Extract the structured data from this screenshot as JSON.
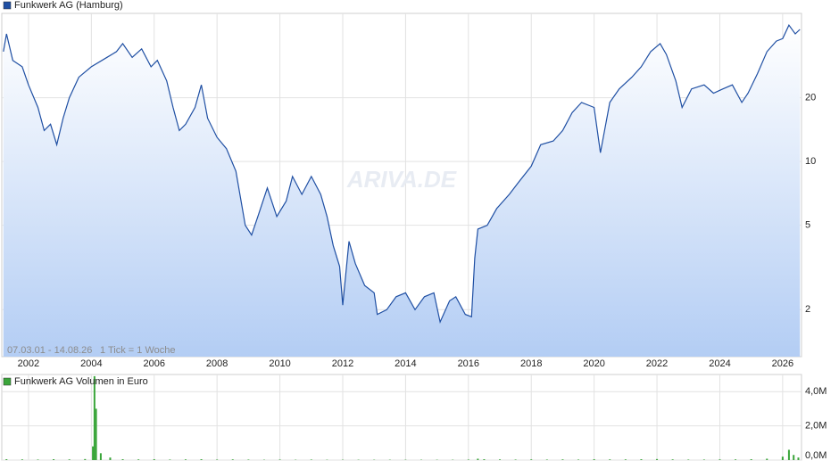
{
  "chart_data": [
    {
      "type": "line",
      "annotations": [
        "07.03.01 - 14.08.26",
        "1 Tick = 1 Woche"
      ],
      "watermark": "ARIVA.DE",
      "log_scale": true,
      "grid": true,
      "xtick_labels": true,
      "fill_area": true,
      "xlim": [
        2001.15,
        2026.6
      ],
      "ylim": [
        1.2,
        50
      ],
      "xticks": [
        2002,
        2004,
        2006,
        2008,
        2010,
        2012,
        2014,
        2016,
        2018,
        2020,
        2022,
        2024,
        2026
      ],
      "yticks": [
        2,
        5,
        10,
        20
      ],
      "x": [
        2001.2,
        2001.3,
        2001.5,
        2001.8,
        2002.0,
        2002.3,
        2002.5,
        2002.7,
        2002.9,
        2003.1,
        2003.3,
        2003.6,
        2004.0,
        2004.5,
        2004.8,
        2005.0,
        2005.3,
        2005.6,
        2005.9,
        2006.1,
        2006.4,
        2006.6,
        2006.8,
        2007.0,
        2007.3,
        2007.5,
        2007.7,
        2008.0,
        2008.3,
        2008.6,
        2008.9,
        2009.1,
        2009.3,
        2009.6,
        2009.9,
        2010.2,
        2010.4,
        2010.7,
        2011.0,
        2011.3,
        2011.5,
        2011.7,
        2011.9,
        2012.0,
        2012.2,
        2012.4,
        2012.7,
        2013.0,
        2013.1,
        2013.4,
        2013.7,
        2014.0,
        2014.3,
        2014.6,
        2014.9,
        2015.1,
        2015.4,
        2015.6,
        2015.9,
        2016.1,
        2016.2,
        2016.3,
        2016.6,
        2016.9,
        2017.3,
        2017.6,
        2018.0,
        2018.3,
        2018.7,
        2019.0,
        2019.3,
        2019.6,
        2020.0,
        2020.2,
        2020.5,
        2020.8,
        2021.2,
        2021.5,
        2021.8,
        2022.1,
        2022.3,
        2022.6,
        2022.8,
        2023.1,
        2023.5,
        2023.8,
        2024.1,
        2024.4,
        2024.7,
        2024.9,
        2025.2,
        2025.5,
        2025.8,
        2026.0,
        2026.2,
        2026.4,
        2026.55
      ],
      "series": [
        {
          "name": "Funkwerk AG (Hamburg)",
          "color": "#1f4fa3",
          "values": [
            33,
            40,
            30,
            28,
            23,
            18,
            14,
            15,
            12,
            16,
            20,
            25,
            28,
            31,
            33,
            36,
            31,
            34,
            28,
            30,
            24,
            18,
            14,
            15,
            18,
            23,
            16,
            13,
            11.5,
            9,
            5,
            4.5,
            5.5,
            7.5,
            5.5,
            6.5,
            8.5,
            7,
            8.5,
            7,
            5.5,
            4,
            3.2,
            2.1,
            4.2,
            3.3,
            2.6,
            2.4,
            1.9,
            2.0,
            2.3,
            2.4,
            2.0,
            2.3,
            2.4,
            1.75,
            2.2,
            2.3,
            1.9,
            1.85,
            3.5,
            4.8,
            5.0,
            6.0,
            7.0,
            8.0,
            9.5,
            12,
            12.5,
            14,
            17,
            19,
            18,
            11,
            19,
            22,
            25,
            28,
            33,
            36,
            32,
            24,
            18,
            22,
            23,
            21,
            22,
            23,
            19,
            21,
            26,
            33,
            37,
            38,
            44,
            40,
            42
          ]
        }
      ]
    },
    {
      "type": "bar",
      "log_scale": false,
      "grid": true,
      "xtick_labels": false,
      "fill_area": false,
      "xlim": [
        2001.15,
        2026.6
      ],
      "ylim": [
        0,
        5
      ],
      "xticks": [
        2002,
        2004,
        2006,
        2008,
        2010,
        2012,
        2014,
        2016,
        2018,
        2020,
        2022,
        2024,
        2026
      ],
      "yticks": [
        {
          "value": 0,
          "label": "0,0M"
        },
        {
          "value": 2,
          "label": "2,0M"
        },
        {
          "value": 4,
          "label": "4,0M"
        }
      ],
      "x": [
        2001.3,
        2001.8,
        2002.3,
        2002.8,
        2003.3,
        2003.8,
        2004.05,
        2004.1,
        2004.15,
        2004.3,
        2004.6,
        2005.0,
        2005.5,
        2006.0,
        2006.5,
        2007.0,
        2007.5,
        2008.0,
        2008.5,
        2009.0,
        2009.5,
        2010.0,
        2010.5,
        2011.0,
        2011.5,
        2012.0,
        2012.5,
        2013.0,
        2013.5,
        2014.0,
        2014.5,
        2015.0,
        2015.5,
        2016.0,
        2016.3,
        2016.5,
        2017.0,
        2017.5,
        2018.0,
        2018.5,
        2019.0,
        2019.5,
        2020.0,
        2020.5,
        2021.0,
        2021.5,
        2022.0,
        2022.5,
        2023.0,
        2023.5,
        2024.0,
        2024.5,
        2025.0,
        2025.5,
        2026.0,
        2026.2,
        2026.35,
        2026.5
      ],
      "series": [
        {
          "name": "Funkwerk AG Volumen in Euro",
          "color": "#3aa53a",
          "values": [
            0.05,
            0.04,
            0.03,
            0.05,
            0.04,
            0.06,
            0.8,
            4.9,
            3.0,
            0.4,
            0.15,
            0.05,
            0.04,
            0.05,
            0.03,
            0.04,
            0.05,
            0.03,
            0.04,
            0.03,
            0.02,
            0.03,
            0.02,
            0.03,
            0.02,
            0.02,
            0.02,
            0.02,
            0.02,
            0.02,
            0.02,
            0.02,
            0.02,
            0.03,
            0.08,
            0.05,
            0.04,
            0.03,
            0.04,
            0.03,
            0.04,
            0.03,
            0.05,
            0.04,
            0.04,
            0.05,
            0.06,
            0.04,
            0.03,
            0.03,
            0.04,
            0.04,
            0.05,
            0.08,
            0.2,
            0.6,
            0.3,
            0.15
          ]
        }
      ]
    }
  ]
}
